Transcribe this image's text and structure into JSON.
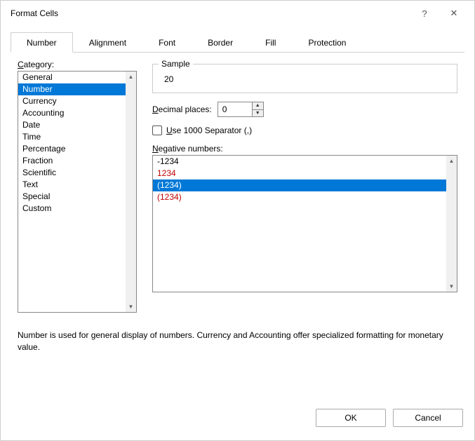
{
  "colors": {
    "selection_bg": "#0078d7",
    "selection_fg": "#ffffff",
    "negative_red": "#c00000",
    "border_gray": "#888888",
    "tab_border": "#d0d0d0"
  },
  "dialog": {
    "title": "Format Cells",
    "help_glyph": "?",
    "close_glyph": "✕"
  },
  "tabs": {
    "items": [
      "Number",
      "Alignment",
      "Font",
      "Border",
      "Fill",
      "Protection"
    ],
    "active_index": 0
  },
  "category": {
    "label_pre": "",
    "label_u": "C",
    "label_post": "ategory:",
    "items": [
      "General",
      "Number",
      "Currency",
      "Accounting",
      "Date",
      "Time",
      "Percentage",
      "Fraction",
      "Scientific",
      "Text",
      "Special",
      "Custom"
    ],
    "selected_index": 1
  },
  "sample": {
    "legend": "Sample",
    "value": "20"
  },
  "decimal": {
    "label_u": "D",
    "label_post": "ecimal places:",
    "value": "0"
  },
  "separator": {
    "label_u": "U",
    "label_post": "se 1000 Separator (,)",
    "checked": false
  },
  "negative": {
    "label_u": "N",
    "label_post": "egative numbers:",
    "items": [
      {
        "text": "-1234",
        "color": "#000000"
      },
      {
        "text": "1234",
        "color": "#c00000"
      },
      {
        "text": "(1234)",
        "color": "#000000"
      },
      {
        "text": "(1234)",
        "color": "#c00000"
      }
    ],
    "selected_index": 2
  },
  "description": "Number is used for general display of numbers.  Currency and Accounting offer specialized formatting for monetary value.",
  "footer": {
    "ok": "OK",
    "cancel": "Cancel"
  }
}
